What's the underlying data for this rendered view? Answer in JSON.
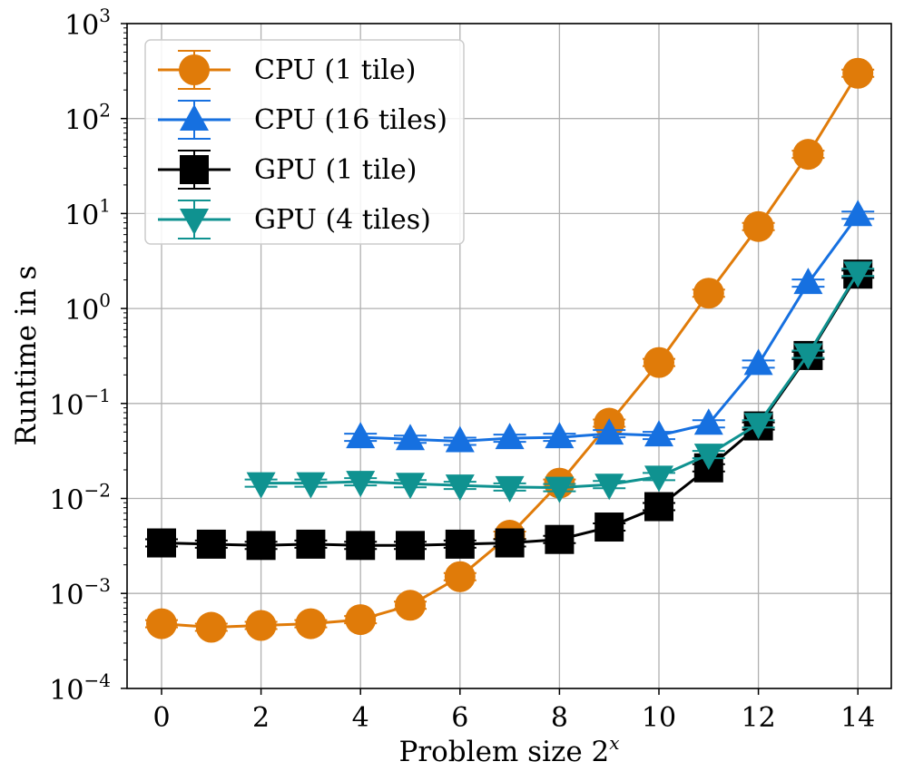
{
  "chart_data": {
    "type": "line",
    "xlabel": "Problem size 2",
    "xlabel_superscript": "x",
    "ylabel": "Runtime in s",
    "yscale": "log",
    "xlim": [
      -0.7,
      14.7
    ],
    "ylim_log10": [
      -4,
      3
    ],
    "xticks": [
      0,
      2,
      4,
      6,
      8,
      10,
      12,
      14
    ],
    "xtick_labels": [
      "0",
      "2",
      "4",
      "6",
      "8",
      "10",
      "12",
      "14"
    ],
    "yticks_log10": [
      -4,
      -3,
      -2,
      -1,
      0,
      1,
      2,
      3
    ],
    "ytick_base": "10",
    "ytick_exponents": [
      "−4",
      "−3",
      "−2",
      "−1",
      "0",
      "1",
      "2",
      "3"
    ],
    "grid": true,
    "legend_position": "top-left",
    "series": [
      {
        "name": "CPU (1 tile)",
        "color": "#e07b09",
        "marker": "circle",
        "x": [
          0,
          1,
          2,
          3,
          4,
          5,
          6,
          7,
          8,
          9,
          10,
          11,
          12,
          13,
          14
        ],
        "y": [
          0.00048,
          0.00044,
          0.00046,
          0.00048,
          0.00053,
          0.00075,
          0.0015,
          0.0041,
          0.0145,
          0.062,
          0.27,
          1.45,
          7.3,
          42,
          300
        ]
      },
      {
        "name": "CPU (16 tiles)",
        "color": "#1670e0",
        "marker": "triangle-up",
        "x": [
          4,
          5,
          6,
          7,
          8,
          9,
          10,
          11,
          12,
          13,
          14
        ],
        "y": [
          0.044,
          0.042,
          0.04,
          0.043,
          0.044,
          0.048,
          0.046,
          0.061,
          0.26,
          1.85,
          9.6
        ]
      },
      {
        "name": "GPU (1 tile)",
        "color": "#000000",
        "marker": "square",
        "x": [
          0,
          1,
          2,
          3,
          4,
          5,
          6,
          7,
          8,
          9,
          10,
          11,
          12,
          13,
          14
        ],
        "y": [
          0.0034,
          0.0033,
          0.0032,
          0.0033,
          0.0032,
          0.0032,
          0.0033,
          0.0034,
          0.0037,
          0.005,
          0.0082,
          0.021,
          0.058,
          0.32,
          2.3
        ]
      },
      {
        "name": "GPU (4 tiles)",
        "color": "#0f9290",
        "marker": "triangle-down",
        "x": [
          2,
          3,
          4,
          5,
          6,
          7,
          8,
          9,
          10,
          11,
          12,
          13,
          14
        ],
        "y": [
          0.0145,
          0.0145,
          0.015,
          0.0143,
          0.0137,
          0.0132,
          0.013,
          0.014,
          0.017,
          0.029,
          0.061,
          0.33,
          2.4
        ]
      }
    ]
  }
}
